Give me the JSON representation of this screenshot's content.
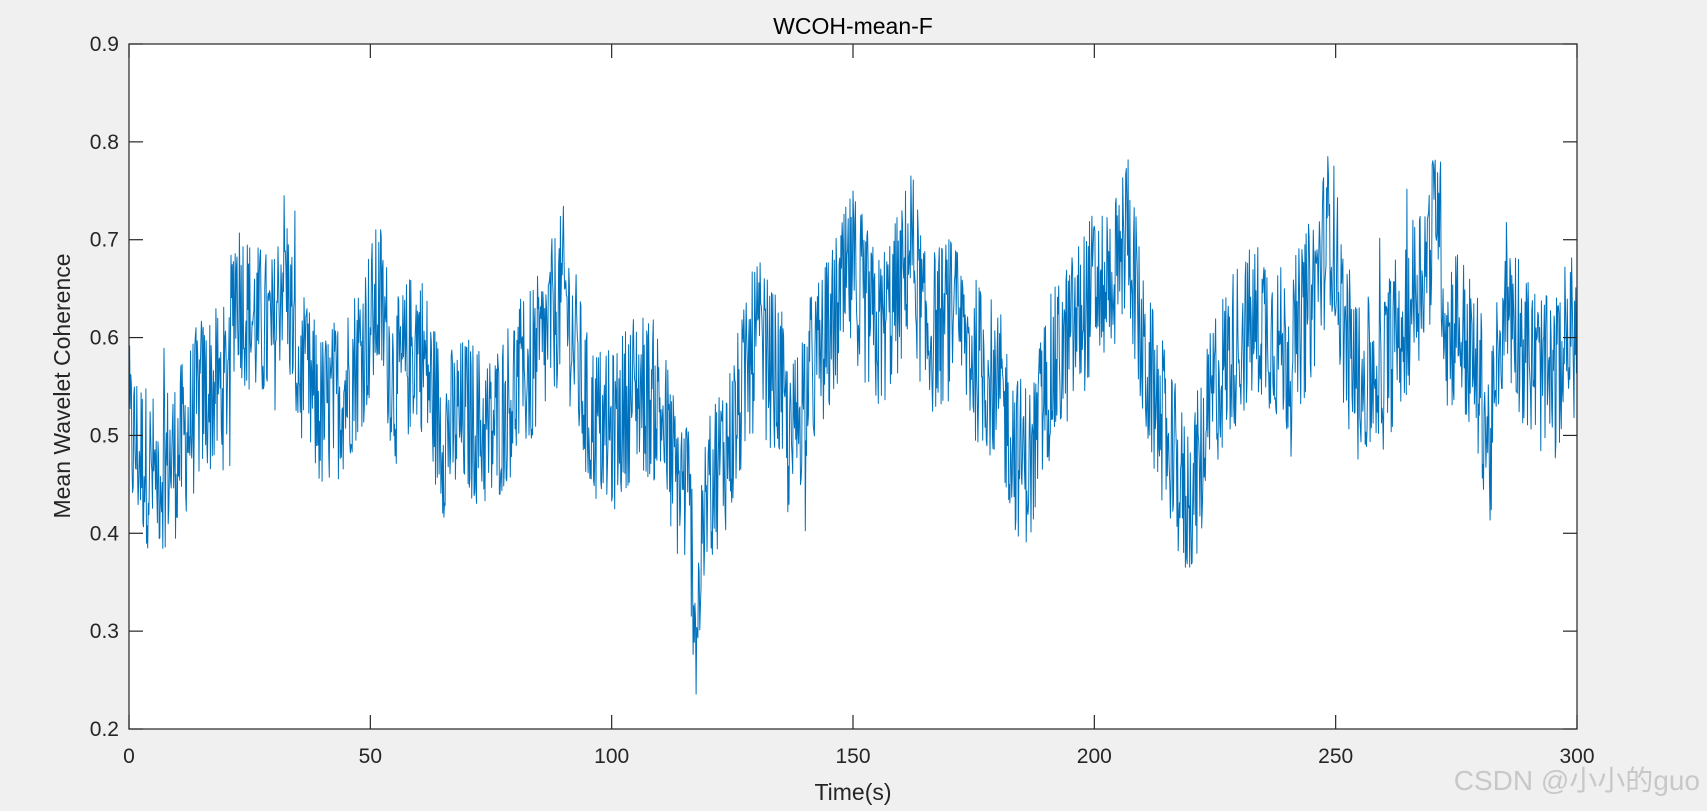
{
  "chart_data": {
    "type": "line",
    "title": "WCOH-mean-F",
    "xlabel": "Time(s)",
    "ylabel": "Mean Wavelet Coherence",
    "xlim": [
      0,
      300
    ],
    "ylim": [
      0.2,
      0.9
    ],
    "xticks": [
      0,
      50,
      100,
      150,
      200,
      250,
      300
    ],
    "yticks": [
      0.2,
      0.3,
      0.4,
      0.5,
      0.6,
      0.7,
      0.8,
      0.9
    ],
    "xtick_labels": [
      "0",
      "50",
      "100",
      "150",
      "200",
      "250",
      "300"
    ],
    "ytick_labels": [
      "0.2",
      "0.3",
      "0.4",
      "0.5",
      "0.6",
      "0.7",
      "0.8",
      "0.9"
    ],
    "grid": false,
    "series": [
      {
        "color": "#0072bd",
        "x": [
          0,
          5,
          10,
          15,
          20,
          22,
          25,
          30,
          32,
          35,
          40,
          45,
          52,
          55,
          60,
          65,
          70,
          75,
          80,
          85,
          90,
          95,
          100,
          105,
          110,
          113,
          116,
          117.5,
          120,
          125,
          130,
          135,
          137,
          140,
          145,
          150,
          155,
          160,
          162,
          165,
          170,
          175,
          180,
          184,
          187,
          190,
          195,
          200,
          205,
          207,
          210,
          215,
          219,
          222,
          225,
          230,
          235,
          240,
          245,
          249,
          252,
          255,
          260,
          265,
          270,
          271,
          273,
          275,
          280,
          282,
          285,
          290,
          295,
          298,
          300
        ],
        "y": [
          0.5,
          0.46,
          0.48,
          0.54,
          0.55,
          0.66,
          0.62,
          0.6,
          0.68,
          0.57,
          0.52,
          0.55,
          0.64,
          0.55,
          0.6,
          0.5,
          0.52,
          0.5,
          0.55,
          0.58,
          0.65,
          0.52,
          0.5,
          0.55,
          0.53,
          0.46,
          0.44,
          0.3,
          0.45,
          0.5,
          0.6,
          0.55,
          0.48,
          0.55,
          0.6,
          0.67,
          0.6,
          0.65,
          0.7,
          0.6,
          0.62,
          0.58,
          0.55,
          0.48,
          0.47,
          0.55,
          0.6,
          0.65,
          0.67,
          0.72,
          0.58,
          0.5,
          0.43,
          0.47,
          0.55,
          0.6,
          0.62,
          0.58,
          0.64,
          0.72,
          0.6,
          0.55,
          0.57,
          0.63,
          0.7,
          0.76,
          0.6,
          0.62,
          0.55,
          0.48,
          0.65,
          0.58,
          0.55,
          0.6,
          0.6
        ]
      }
    ]
  },
  "watermark": "CSDN @小小的guo"
}
